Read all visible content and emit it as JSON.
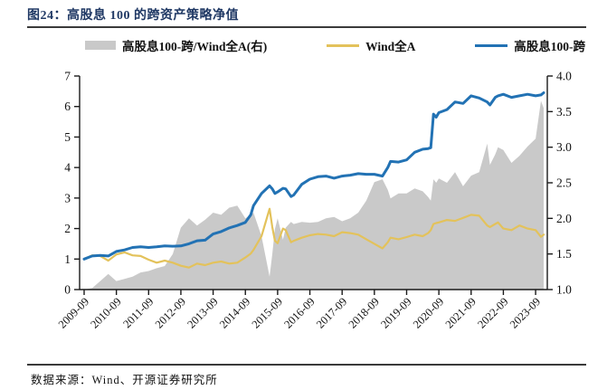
{
  "header": {
    "title": "图24：高股息 100 的跨资产策略净值"
  },
  "footer": {
    "source": "数据来源：Wind、开源证券研究所"
  },
  "colors": {
    "title": "#1f3864",
    "area": "#c9c9c9",
    "wind_line": "#e3c25b",
    "strategy_line": "#2272b4",
    "axis": "#1a1a1a",
    "rule": "#3a3a3a"
  },
  "legend": {
    "items": [
      {
        "key": "ratio",
        "label": "高股息100-跨/Wind全A(右)",
        "marker": "area",
        "color": "#c9c9c9"
      },
      {
        "key": "wind",
        "label": "Wind全A",
        "marker": "line",
        "color": "#e3c25b"
      },
      {
        "key": "strategy",
        "label": "高股息100-跨",
        "marker": "line",
        "color": "#2272b4"
      }
    ]
  },
  "chart_data": {
    "type": "line",
    "subtype": "two lines on left axis + ratio area on right axis",
    "x_unit": "months since 2009-09",
    "left_axis": {
      "min": 0,
      "max": 7,
      "ticks": [
        0,
        1,
        2,
        3,
        4,
        5,
        6,
        7
      ]
    },
    "right_axis": {
      "min": 1.0,
      "max": 4.0,
      "tick_labels": [
        "1.0",
        "1.5",
        "2.0",
        "2.5",
        "3.0",
        "3.5",
        "4.0"
      ],
      "tick_values": [
        1.0,
        1.5,
        2.0,
        2.5,
        3.0,
        3.5,
        4.0
      ]
    },
    "x_tick_t": [
      0,
      12,
      24,
      36,
      48,
      60,
      72,
      84,
      96,
      108,
      120,
      132,
      144,
      156,
      168
    ],
    "x_tick_labels": [
      "2009-09",
      "2010-09",
      "2011-09",
      "2012-09",
      "2013-09",
      "2014-09",
      "2015-09",
      "2016-09",
      "2017-09",
      "2018-09",
      "2019-09",
      "2020-09",
      "2021-09",
      "2022-09",
      "2023-09"
    ],
    "grid": false,
    "legend_position": "top",
    "t": [
      0,
      3,
      6,
      9,
      12,
      15,
      18,
      21,
      24,
      27,
      30,
      33,
      36,
      39,
      42,
      45,
      48,
      51,
      54,
      57,
      60,
      62,
      63,
      66,
      69,
      70,
      71,
      72,
      74,
      75,
      77,
      78,
      81,
      84,
      87,
      90,
      93,
      96,
      99,
      102,
      105,
      108,
      111,
      113,
      114,
      117,
      120,
      123,
      126,
      128,
      129,
      130,
      131,
      132,
      135,
      138,
      141,
      144,
      147,
      150,
      151,
      153,
      154,
      156,
      159,
      162,
      165,
      168,
      170,
      171
    ],
    "series": [
      {
        "key": "ratio",
        "name": "高股息100-跨/Wind全A(右)",
        "axis": "right",
        "style": "area",
        "values": [
          1.0,
          1.02,
          1.12,
          1.22,
          1.12,
          1.15,
          1.18,
          1.24,
          1.26,
          1.3,
          1.33,
          1.5,
          1.87,
          2.0,
          1.9,
          1.98,
          2.08,
          2.05,
          2.15,
          2.18,
          2.0,
          2.05,
          2.08,
          1.75,
          1.18,
          1.5,
          1.85,
          2.0,
          1.7,
          1.87,
          1.95,
          1.92,
          1.95,
          1.94,
          1.95,
          2.0,
          2.02,
          1.96,
          2.0,
          2.08,
          2.25,
          2.51,
          2.55,
          2.4,
          2.28,
          2.35,
          2.35,
          2.42,
          2.38,
          2.3,
          2.25,
          2.55,
          2.5,
          2.56,
          2.5,
          2.65,
          2.45,
          2.6,
          2.65,
          3.05,
          2.75,
          2.9,
          3.0,
          2.96,
          2.78,
          2.88,
          3.01,
          3.12,
          3.65,
          3.55
        ]
      },
      {
        "key": "wind",
        "name": "Wind全A",
        "axis": "left",
        "style": "line",
        "values": [
          1.0,
          1.12,
          1.1,
          0.95,
          1.15,
          1.22,
          1.12,
          1.1,
          0.98,
          0.88,
          0.95,
          0.88,
          0.78,
          0.72,
          0.85,
          0.8,
          0.88,
          0.92,
          0.85,
          0.88,
          1.05,
          1.18,
          1.3,
          1.75,
          2.65,
          2.05,
          1.6,
          1.52,
          2.0,
          1.95,
          1.55,
          1.6,
          1.7,
          1.78,
          1.82,
          1.8,
          1.75,
          1.88,
          1.85,
          1.8,
          1.65,
          1.5,
          1.35,
          1.55,
          1.7,
          1.65,
          1.72,
          1.8,
          1.75,
          1.85,
          1.95,
          2.15,
          2.18,
          2.2,
          2.28,
          2.25,
          2.35,
          2.45,
          2.42,
          2.1,
          2.05,
          2.15,
          2.2,
          2.0,
          1.95,
          2.1,
          2.0,
          1.95,
          1.73,
          1.8
        ]
      },
      {
        "key": "strategy",
        "name": "高股息100-跨",
        "axis": "left",
        "style": "line",
        "values": [
          1.0,
          1.1,
          1.12,
          1.1,
          1.25,
          1.3,
          1.38,
          1.4,
          1.38,
          1.4,
          1.43,
          1.42,
          1.43,
          1.5,
          1.6,
          1.62,
          1.82,
          1.9,
          2.02,
          2.1,
          2.2,
          2.45,
          2.75,
          3.15,
          3.4,
          3.3,
          3.15,
          3.2,
          3.32,
          3.3,
          3.05,
          3.1,
          3.45,
          3.62,
          3.7,
          3.72,
          3.65,
          3.72,
          3.75,
          3.8,
          3.78,
          3.78,
          3.72,
          4.0,
          4.2,
          4.18,
          4.25,
          4.5,
          4.6,
          4.62,
          4.65,
          5.75,
          5.65,
          5.8,
          5.9,
          6.15,
          6.1,
          6.35,
          6.28,
          6.15,
          6.05,
          6.3,
          6.35,
          6.4,
          6.3,
          6.35,
          6.4,
          6.35,
          6.38,
          6.45
        ]
      }
    ]
  }
}
